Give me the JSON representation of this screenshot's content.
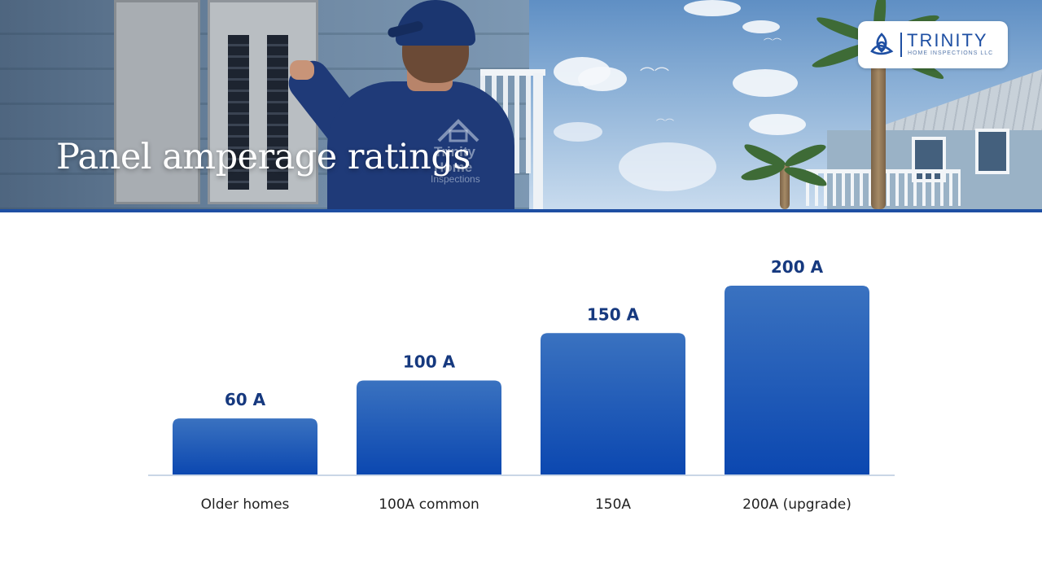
{
  "header": {
    "title": "Panel amperage ratings",
    "shirt_logo": {
      "line1": "Trinity",
      "line2": "Home",
      "line3": "Inspections"
    }
  },
  "logo": {
    "name": "TRINITY",
    "tagline": "HOME INSPECTIONS LLC",
    "icon": "trinity-knot-icon"
  },
  "colors": {
    "accent": "#1e4fa3",
    "bar_top": "#3a72c0",
    "bar_bottom": "#0b47b0",
    "value_label": "#16397f",
    "category_label": "#222222",
    "baseline": "#c9d6e6"
  },
  "chart_data": {
    "type": "bar",
    "title": "Panel amperage ratings",
    "categories": [
      "Older homes",
      "100A common",
      "150A",
      "200A (upgrade)"
    ],
    "values": [
      60,
      100,
      150,
      200
    ],
    "value_labels": [
      "60 A",
      "100 A",
      "150 A",
      "200 A"
    ],
    "ylim": [
      0,
      200
    ],
    "grid": false,
    "legend": "none"
  }
}
